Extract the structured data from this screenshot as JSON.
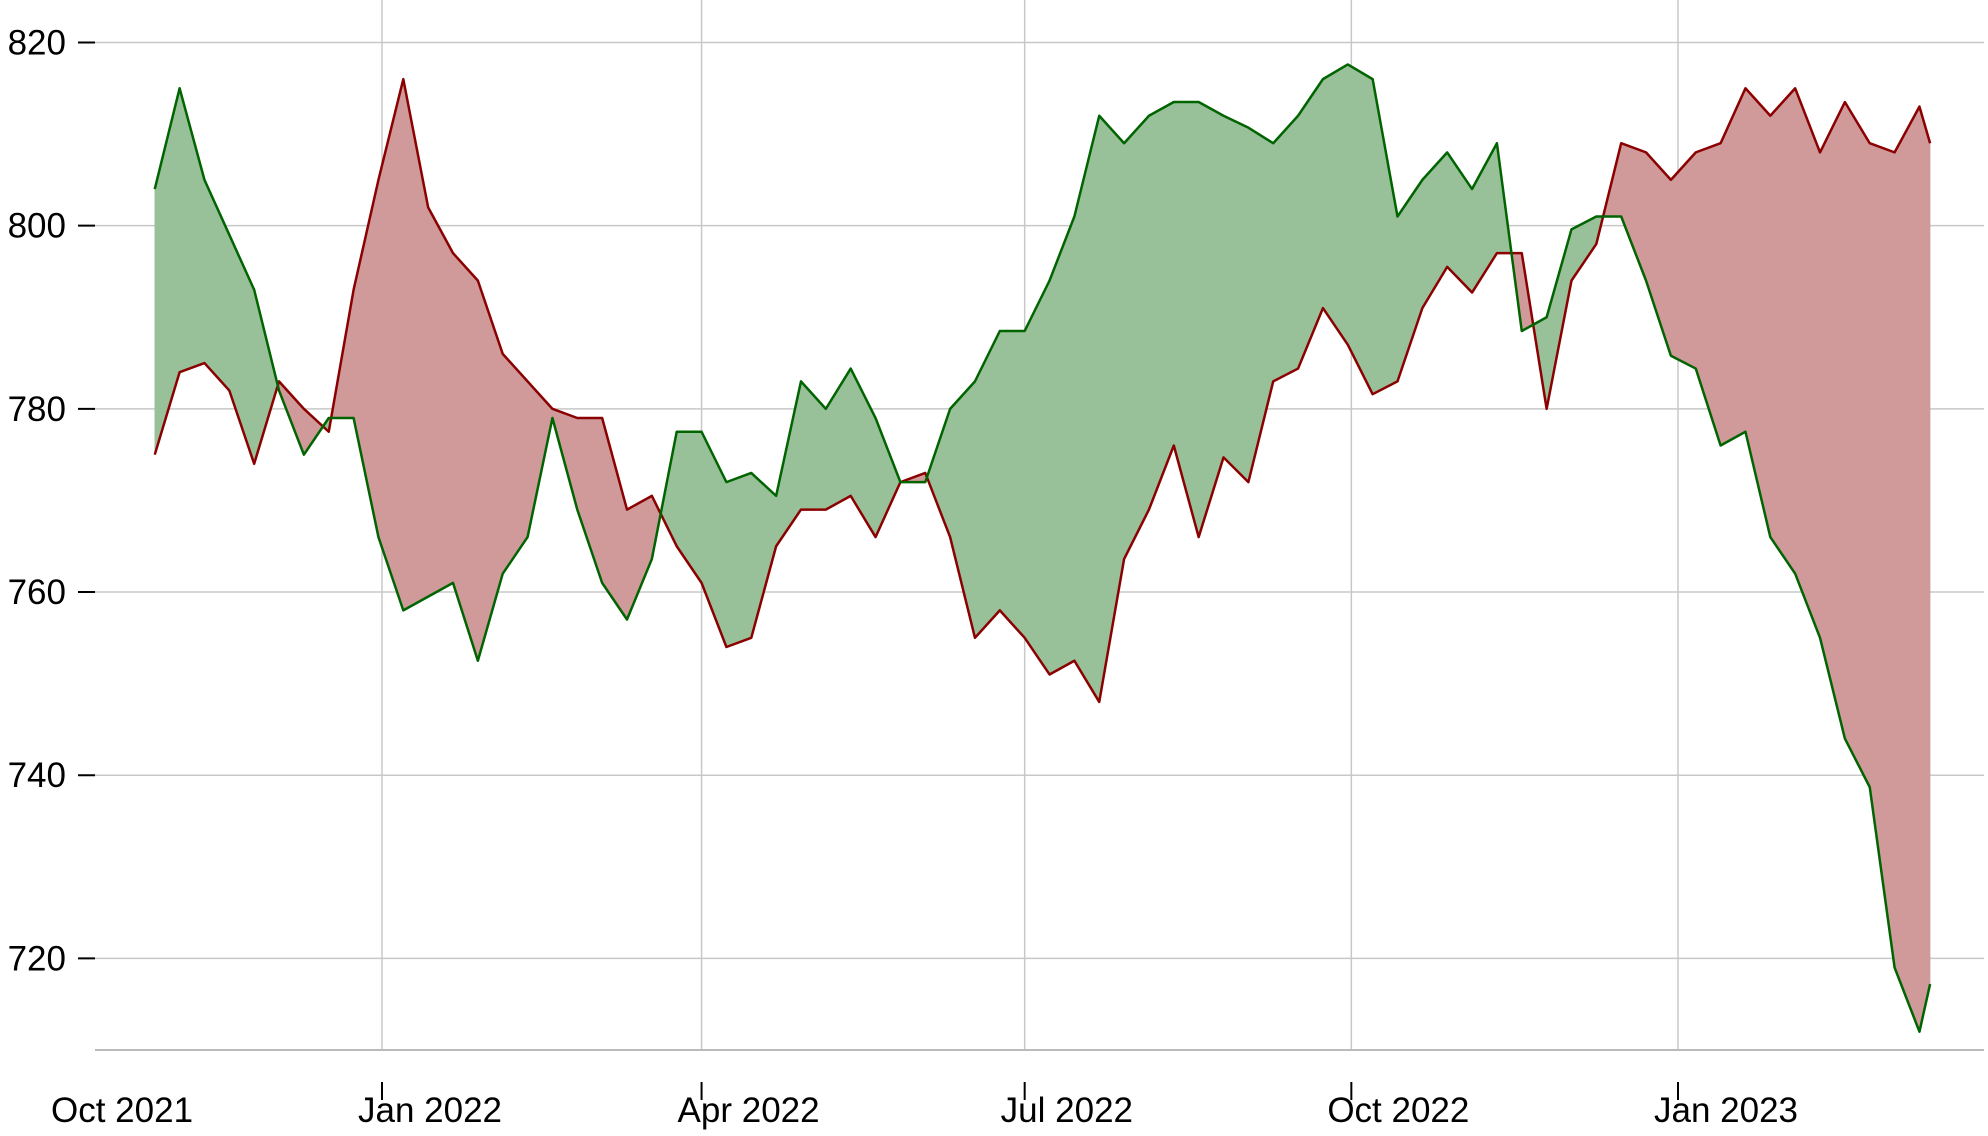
{
  "chart_data": {
    "type": "area",
    "title": "",
    "xlabel": "",
    "ylabel": "",
    "ylim": [
      710,
      823
    ],
    "grid": true,
    "y_ticks": [
      720,
      740,
      760,
      780,
      800,
      820
    ],
    "x_ticks": [
      {
        "date": "2021-10-01",
        "label": "Oct 2021"
      },
      {
        "date": "2022-01-01",
        "label": "Jan 2022"
      },
      {
        "date": "2022-04-01",
        "label": "Apr 2022"
      },
      {
        "date": "2022-07-01",
        "label": "Jul 2022"
      },
      {
        "date": "2022-10-01",
        "label": "Oct 2022"
      },
      {
        "date": "2023-01-01",
        "label": "Jan 2023"
      }
    ],
    "fill_rule": "fill between series; green where green series is above, red where red series is above",
    "colors": {
      "green_line": "#006400",
      "red_line": "#8b0000",
      "green_fill": "#99c199",
      "red_fill": "#d09a9a",
      "grid": "#c8c8c8"
    },
    "x": [
      "2021-10-29",
      "2021-11-05",
      "2021-11-12",
      "2021-11-19",
      "2021-11-26",
      "2021-12-03",
      "2021-12-10",
      "2021-12-17",
      "2021-12-24",
      "2021-12-31",
      "2022-01-07",
      "2022-01-14",
      "2022-01-21",
      "2022-01-28",
      "2022-02-04",
      "2022-02-11",
      "2022-02-18",
      "2022-02-25",
      "2022-03-04",
      "2022-03-11",
      "2022-03-18",
      "2022-03-25",
      "2022-04-01",
      "2022-04-08",
      "2022-04-15",
      "2022-04-22",
      "2022-04-29",
      "2022-05-06",
      "2022-05-13",
      "2022-05-20",
      "2022-05-27",
      "2022-06-03",
      "2022-06-10",
      "2022-06-17",
      "2022-06-24",
      "2022-07-01",
      "2022-07-08",
      "2022-07-15",
      "2022-07-22",
      "2022-07-29",
      "2022-08-05",
      "2022-08-12",
      "2022-08-19",
      "2022-08-26",
      "2022-09-02",
      "2022-09-09",
      "2022-09-16",
      "2022-09-23",
      "2022-09-30",
      "2022-10-07",
      "2022-10-14",
      "2022-10-21",
      "2022-10-28",
      "2022-11-04",
      "2022-11-11",
      "2022-11-18",
      "2022-11-25",
      "2022-12-02",
      "2022-12-09",
      "2022-12-16",
      "2022-12-23",
      "2022-12-30",
      "2023-01-06",
      "2023-01-13",
      "2023-01-20",
      "2023-01-27",
      "2023-02-03",
      "2023-02-10",
      "2023-02-17",
      "2023-02-24",
      "2023-03-03",
      "2023-03-10",
      "2023-03-13"
    ],
    "series": [
      {
        "color": "#006400",
        "values": [
          804,
          815,
          805,
          799,
          793,
          782,
          775,
          779,
          779,
          766,
          758,
          759.5,
          761,
          752.5,
          762,
          766,
          779,
          769,
          761,
          757,
          763.6,
          777.5,
          777.5,
          772,
          773,
          770.5,
          783,
          780,
          784.4,
          779,
          772,
          772,
          780,
          783,
          788.5,
          788.5,
          794,
          801,
          812,
          809,
          812,
          813.5,
          813.5,
          812,
          810.7,
          809,
          812,
          816,
          817.6,
          816,
          801,
          805,
          808,
          804,
          809,
          788.5,
          790,
          799.6,
          801,
          801,
          794,
          785.8,
          784.4,
          776,
          777.5,
          766,
          762,
          755,
          744,
          738.7,
          719,
          712,
          717.2
        ]
      },
      {
        "color": "#8b0000",
        "values": [
          775,
          784,
          785,
          782,
          774,
          783,
          780,
          777.5,
          793,
          805,
          816,
          802,
          797,
          794,
          786,
          783,
          780,
          779,
          779,
          769,
          770.5,
          765,
          761,
          754,
          755,
          765,
          769,
          769,
          770.5,
          766,
          772,
          773,
          766,
          755,
          758,
          755,
          751,
          752.5,
          748,
          763.6,
          769,
          776,
          766,
          774.7,
          772,
          783,
          784.4,
          791,
          787,
          781.6,
          783,
          791,
          795.5,
          792.7,
          797,
          797,
          780,
          794,
          798,
          809,
          808,
          805,
          808,
          809,
          815,
          812,
          815,
          808,
          813.5,
          809,
          808,
          813,
          809
        ]
      }
    ]
  }
}
